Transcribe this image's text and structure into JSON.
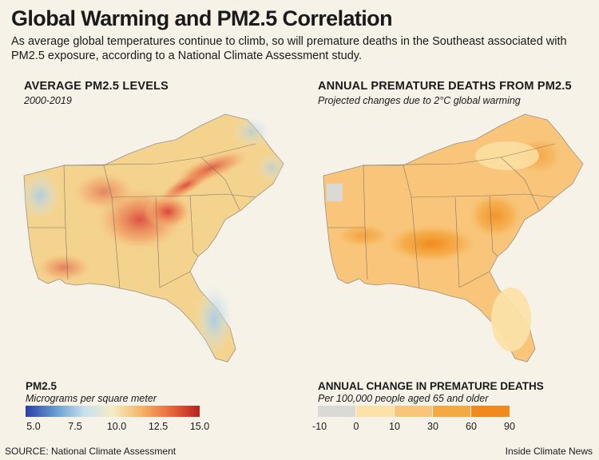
{
  "header": {
    "title": "Global Warming and PM2.5 Correlation",
    "subtitle": "As average global temperatures continue to climb, so will premature deaths in the Southeast associated with PM2.5 exposure, according to a National Climate Assessment study."
  },
  "left_panel": {
    "heading": "AVERAGE PM2.5 LEVELS",
    "subheading": "2000-2019",
    "legend_title": "PM2.5",
    "legend_subtitle": "Micrograms per square meter",
    "ticks": [
      "5.0",
      "7.5",
      "10.0",
      "12.5",
      "15.0"
    ],
    "scale_colors": [
      "#2b3fa5",
      "#c8e1ef",
      "#f4ecc4",
      "#e6663a",
      "#b8211f"
    ]
  },
  "right_panel": {
    "heading": "ANNUAL PREMATURE DEATHS FROM PM2.5",
    "subheading": "Projected changes due to 2°C global warming",
    "legend_title": "ANNUAL CHANGE IN PREMATURE DEATHS",
    "legend_subtitle": "Per 100,000 people aged 65 and older",
    "ticks": [
      "-10",
      "0",
      "10",
      "30",
      "60",
      "90"
    ],
    "bin_colors": [
      "#d9d9d6",
      "#fbe2a8",
      "#f8c57a",
      "#f5a942",
      "#f08a1c"
    ]
  },
  "footer": {
    "source": "SOURCE: National Climate Assessment",
    "credit": "Inside Climate News"
  }
}
